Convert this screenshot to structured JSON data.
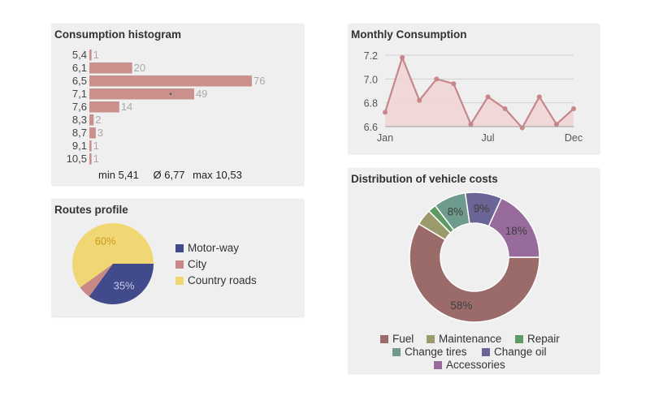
{
  "chart_data": [
    {
      "id": "histogram",
      "type": "bar",
      "orientation": "horizontal",
      "title": "Consumption histogram",
      "categories": [
        "5,4",
        "6,1",
        "6,5",
        "7,1",
        "7,6",
        "8,3",
        "8,7",
        "9,1",
        "10,5"
      ],
      "values": [
        1,
        20,
        76,
        49,
        14,
        2,
        3,
        1,
        1
      ],
      "value_labels": [
        "1",
        "20",
        "76",
        "49",
        "14",
        "2",
        "3",
        "1",
        "1"
      ],
      "average_marker_category": "7,1",
      "xlim": [
        0,
        76
      ],
      "color": "#c9908c",
      "stats": {
        "min": "min 5,41",
        "avg": "Ø 6,77",
        "max": "max 10,53"
      }
    },
    {
      "id": "monthly",
      "type": "area",
      "title": "Monthly Consumption",
      "y_ticks": [
        "7.2",
        "7.0",
        "6.8",
        "6.6"
      ],
      "ylim": [
        6.6,
        7.2
      ],
      "x_tick_labels": [
        "Jan",
        "Jul",
        "Dec"
      ],
      "values": [
        6.72,
        7.18,
        6.82,
        7.0,
        6.96,
        6.62,
        6.85,
        6.75,
        6.59,
        6.85,
        6.62,
        6.75
      ],
      "line_color": "#c7878a",
      "fill_color": "#f0d3d3",
      "grid": true
    },
    {
      "id": "routes",
      "type": "pie",
      "title": "Routes profile",
      "labels": [
        "Motor-way",
        "City",
        "Country roads"
      ],
      "values": [
        35,
        5,
        60
      ],
      "slice_labels": [
        "35%",
        "",
        "60%"
      ],
      "colors": [
        "#414a8a",
        "#c98886",
        "#f1d774"
      ],
      "label_colors": [
        "#c7cbe8",
        "",
        "#c99a1a"
      ],
      "legend": "right"
    },
    {
      "id": "distribution",
      "type": "pie",
      "donut": true,
      "title": "Distribution of vehicle costs",
      "labels": [
        "Fuel",
        "Maintenance",
        "Repair",
        "Change tires",
        "Change oil",
        "Accessories"
      ],
      "values": [
        58,
        4,
        2,
        8,
        9,
        18
      ],
      "slice_labels": [
        "58%",
        "",
        "",
        "8%",
        "9%",
        "18%"
      ],
      "colors": [
        "#9a6b69",
        "#9b9a6a",
        "#5f9a64",
        "#6f9b8f",
        "#6a6596",
        "#976c9d"
      ],
      "legend": "bottom"
    }
  ]
}
